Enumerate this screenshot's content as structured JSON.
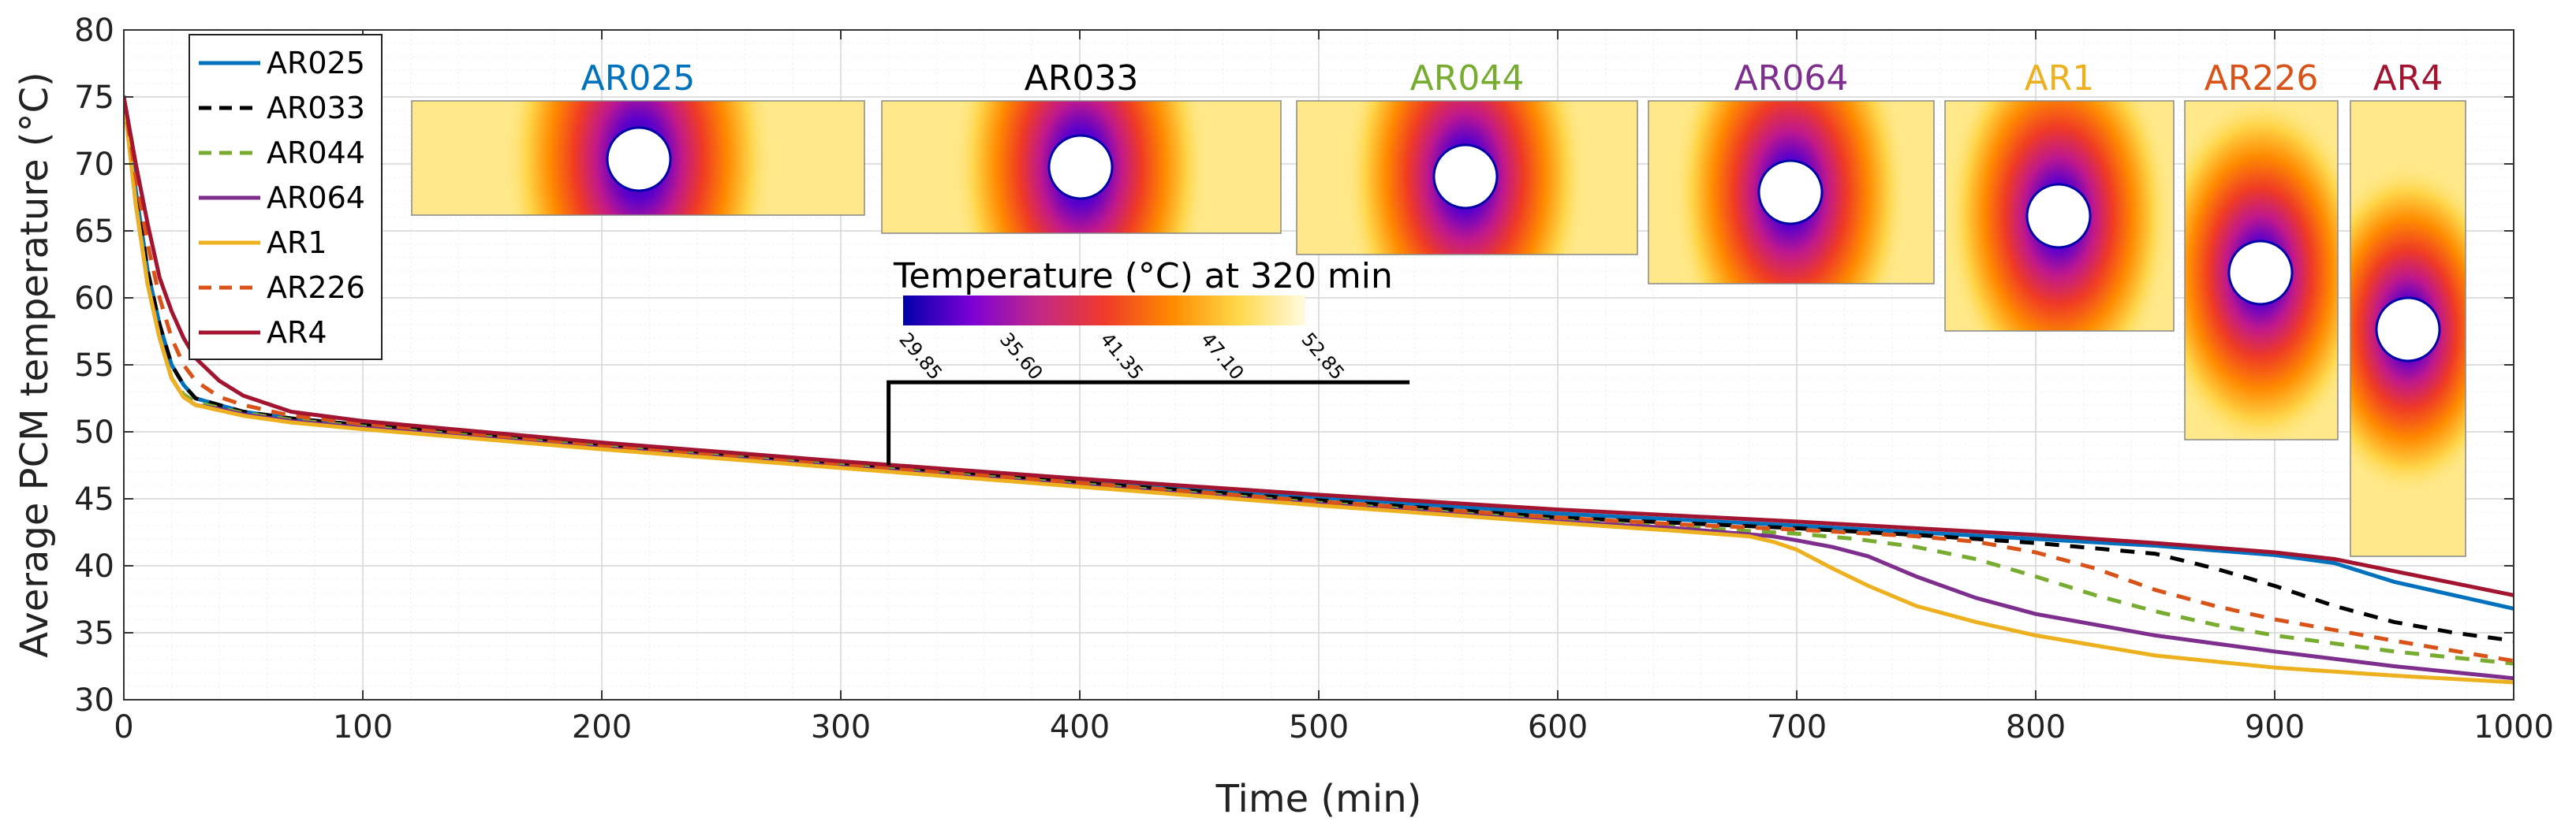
{
  "chart_data": {
    "type": "line",
    "xlabel": "Time (min)",
    "ylabel": "Average PCM temperature (°C)",
    "xlim": [
      0,
      1000
    ],
    "ylim": [
      30,
      80
    ],
    "xticks": [
      "0",
      "100",
      "200",
      "300",
      "400",
      "500",
      "600",
      "700",
      "800",
      "900",
      "1000"
    ],
    "yticks": [
      "30",
      "35",
      "40",
      "45",
      "50",
      "55",
      "60",
      "65",
      "70",
      "75",
      "80"
    ],
    "grid": true,
    "legend_position": "top-left",
    "series": [
      {
        "name": "AR025",
        "color": "#0072BD",
        "dash": "solid",
        "x": [
          0,
          5,
          10,
          15,
          20,
          25,
          30,
          40,
          50,
          70,
          100,
          200,
          300,
          400,
          500,
          600,
          700,
          750,
          800,
          850,
          900,
          925,
          950,
          975,
          1000
        ],
        "y": [
          75,
          68,
          62,
          58,
          55,
          53.5,
          52.5,
          52,
          51.5,
          51,
          50.5,
          49,
          47.7,
          46.4,
          45.1,
          43.9,
          43.0,
          42.5,
          42.0,
          41.5,
          40.8,
          40.2,
          38.8,
          37.8,
          36.8
        ]
      },
      {
        "name": "AR033",
        "color": "#000000",
        "dash": "dash",
        "x": [
          0,
          5,
          10,
          15,
          20,
          25,
          30,
          40,
          50,
          70,
          100,
          200,
          300,
          400,
          500,
          600,
          650,
          700,
          750,
          800,
          850,
          875,
          900,
          925,
          950,
          975,
          1000
        ],
        "y": [
          75,
          68,
          62,
          58,
          55,
          53.5,
          52.5,
          52,
          51.5,
          51,
          50.5,
          49,
          47.6,
          46.2,
          44.9,
          43.6,
          43.2,
          42.8,
          42.3,
          41.7,
          40.9,
          39.8,
          38.5,
          37.0,
          35.8,
          35.0,
          34.4
        ]
      },
      {
        "name": "AR044",
        "color": "#77AC30",
        "dash": "dash",
        "x": [
          0,
          5,
          10,
          15,
          20,
          25,
          30,
          40,
          50,
          70,
          100,
          200,
          300,
          400,
          500,
          600,
          650,
          700,
          725,
          750,
          775,
          800,
          825,
          850,
          875,
          900,
          950,
          1000
        ],
        "y": [
          75,
          67,
          61,
          57,
          54,
          52.8,
          52.2,
          51.8,
          51.4,
          50.9,
          50.4,
          48.9,
          47.5,
          46.1,
          44.7,
          43.4,
          42.9,
          42.4,
          42.0,
          41.4,
          40.5,
          39.2,
          37.8,
          36.6,
          35.6,
          34.8,
          33.6,
          32.7
        ]
      },
      {
        "name": "AR064",
        "color": "#7E2F8E",
        "dash": "solid",
        "x": [
          0,
          5,
          10,
          15,
          20,
          25,
          30,
          40,
          50,
          70,
          100,
          200,
          300,
          400,
          500,
          600,
          650,
          690,
          700,
          715,
          730,
          750,
          775,
          800,
          850,
          900,
          950,
          1000
        ],
        "y": [
          75,
          67,
          61,
          57,
          54,
          52.6,
          52,
          51.7,
          51.3,
          50.8,
          50.3,
          48.8,
          47.4,
          46,
          44.6,
          43.3,
          42.8,
          42.2,
          41.9,
          41.4,
          40.7,
          39.2,
          37.6,
          36.4,
          34.8,
          33.6,
          32.5,
          31.6
        ]
      },
      {
        "name": "AR1",
        "color": "#EDB120",
        "dash": "solid",
        "x": [
          0,
          5,
          10,
          15,
          20,
          25,
          30,
          40,
          50,
          70,
          100,
          200,
          300,
          400,
          500,
          600,
          650,
          680,
          690,
          700,
          715,
          730,
          750,
          775,
          800,
          850,
          900,
          950,
          1000
        ],
        "y": [
          75,
          67,
          61,
          57,
          54,
          52.6,
          52,
          51.6,
          51.2,
          50.7,
          50.2,
          48.7,
          47.3,
          45.9,
          44.5,
          43.2,
          42.6,
          42.2,
          41.8,
          41.2,
          39.8,
          38.5,
          37.0,
          35.8,
          34.8,
          33.3,
          32.4,
          31.8,
          31.3
        ]
      },
      {
        "name": "AR226",
        "color": "#D95319",
        "dash": "dash",
        "x": [
          0,
          5,
          10,
          15,
          20,
          25,
          30,
          40,
          50,
          70,
          100,
          200,
          300,
          400,
          500,
          600,
          650,
          700,
          750,
          775,
          800,
          825,
          850,
          875,
          900,
          925,
          950,
          1000
        ],
        "y": [
          75,
          69,
          64,
          60,
          57,
          55,
          53.8,
          52.6,
          52,
          51.2,
          50.6,
          49,
          47.6,
          46.2,
          44.8,
          43.6,
          43.1,
          42.7,
          42.2,
          41.8,
          41.0,
          39.8,
          38.2,
          37.0,
          36.0,
          35.2,
          34.4,
          32.9
        ]
      },
      {
        "name": "AR4",
        "color": "#A2142F",
        "dash": "solid",
        "x": [
          0,
          5,
          10,
          15,
          20,
          25,
          30,
          40,
          50,
          70,
          100,
          200,
          300,
          400,
          500,
          600,
          700,
          750,
          800,
          850,
          900,
          925,
          950,
          975,
          1000
        ],
        "y": [
          75,
          70,
          65.5,
          61.5,
          59,
          57,
          55.5,
          53.8,
          52.7,
          51.5,
          50.8,
          49.2,
          47.8,
          46.5,
          45.3,
          44.2,
          43.3,
          42.8,
          42.3,
          41.7,
          41.0,
          40.5,
          39.6,
          38.7,
          37.8
        ]
      }
    ],
    "annotation": {
      "type": "bracket",
      "x_start": 320,
      "x_end": 538,
      "y_low": 47.5,
      "y_high": 53.7
    }
  },
  "insets": [
    {
      "title": "AR025",
      "color": "#0072BD"
    },
    {
      "title": "AR033",
      "color": "#000000"
    },
    {
      "title": "AR044",
      "color": "#77AC30"
    },
    {
      "title": "AR064",
      "color": "#7E2F8E"
    },
    {
      "title": "AR1",
      "color": "#EDB120"
    },
    {
      "title": "AR226",
      "color": "#D95319"
    },
    {
      "title": "AR4",
      "color": "#A2142F"
    }
  ],
  "colorbar": {
    "title": "Temperature (°C) at 320 min",
    "ticks": [
      "29.85",
      "35.60",
      "41.35",
      "47.10",
      "52.85"
    ],
    "colors": [
      "#0000a8",
      "#7a00d6",
      "#c02888",
      "#ee3a2c",
      "#ff8a00",
      "#ffd84a",
      "#fffbe0"
    ]
  }
}
